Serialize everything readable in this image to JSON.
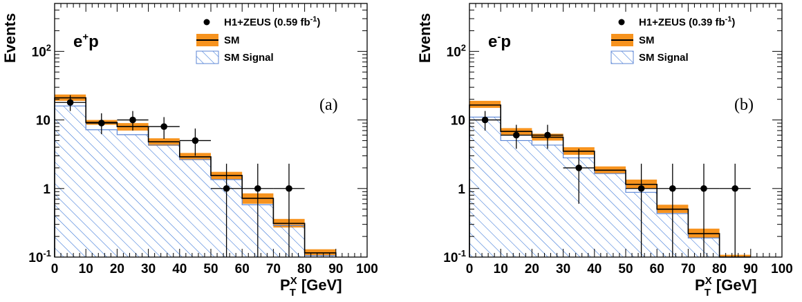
{
  "chart_data": [
    {
      "type": "histogram",
      "panel_label": "(a)",
      "beam": {
        "base": "e",
        "sup": "+",
        "rest": "p"
      },
      "ylabel": "Events",
      "xlabel": {
        "base": "P",
        "sup": "X",
        "sub": "T",
        "unit": "[GeV]"
      },
      "xlim": [
        0,
        100
      ],
      "ylim": [
        0.1,
        500
      ],
      "yscale": "log",
      "xticks": [
        "0",
        "10",
        "20",
        "30",
        "40",
        "50",
        "60",
        "70",
        "80",
        "90",
        "100"
      ],
      "yticks": [
        {
          "value": 0.1,
          "label": "10",
          "sup": "-1"
        },
        {
          "value": 1,
          "label": "1",
          "sup": ""
        },
        {
          "value": 10,
          "label": "10",
          "sup": ""
        },
        {
          "value": 100,
          "label": "10",
          "sup": "2"
        }
      ],
      "legend": [
        {
          "kind": "data",
          "label": "H1+ZEUS (0.59 fb",
          "sup": "-1",
          "tail": ")"
        },
        {
          "kind": "sm",
          "label": "SM"
        },
        {
          "kind": "signal",
          "label": "SM Signal"
        }
      ],
      "bin_edges": [
        0,
        10,
        20,
        30,
        40,
        50,
        60,
        70,
        80,
        90
      ],
      "sm": [
        21,
        9.2,
        8.0,
        4.8,
        2.9,
        1.55,
        0.72,
        0.31,
        0.115
      ],
      "sm_band": [
        [
          19,
          23.5
        ],
        [
          8.5,
          10.0
        ],
        [
          7.0,
          9.0
        ],
        [
          4.2,
          5.4
        ],
        [
          2.6,
          3.3
        ],
        [
          1.35,
          1.75
        ],
        [
          0.6,
          0.85
        ],
        [
          0.27,
          0.36
        ],
        [
          0.105,
          0.13
        ]
      ],
      "signal": [
        16,
        7.2,
        6.1,
        4.3,
        2.65,
        1.35,
        0.58,
        0.29,
        0.105
      ],
      "data": [
        {
          "x": 5,
          "y": 18,
          "ylo": 13.5,
          "yhi": 23
        },
        {
          "x": 15,
          "y": 9,
          "ylo": 6.2,
          "yhi": 12.5
        },
        {
          "x": 25,
          "y": 10,
          "ylo": 7,
          "yhi": 13.5
        },
        {
          "x": 35,
          "y": 8,
          "ylo": 5.3,
          "yhi": 11
        },
        {
          "x": 45,
          "y": 5,
          "ylo": 3,
          "yhi": 7.5
        },
        {
          "x": 55,
          "y": 1,
          "ylo": 0.1,
          "yhi": 2.3
        },
        {
          "x": 65,
          "y": 1,
          "ylo": 0.1,
          "yhi": 2.3
        },
        {
          "x": 75,
          "y": 1,
          "ylo": 0.1,
          "yhi": 2.3
        }
      ]
    },
    {
      "type": "histogram",
      "panel_label": "(b)",
      "beam": {
        "base": "e",
        "sup": "-",
        "rest": "p"
      },
      "ylabel": "Events",
      "xlabel": {
        "base": "P",
        "sup": "X",
        "sub": "T",
        "unit": "[GeV]"
      },
      "xlim": [
        0,
        100
      ],
      "ylim": [
        0.1,
        500
      ],
      "yscale": "log",
      "xticks": [
        "0",
        "10",
        "20",
        "30",
        "40",
        "50",
        "60",
        "70",
        "80",
        "90",
        "100"
      ],
      "yticks": [
        {
          "value": 0.1,
          "label": "10",
          "sup": "-1"
        },
        {
          "value": 1,
          "label": "1",
          "sup": ""
        },
        {
          "value": 10,
          "label": "10",
          "sup": ""
        },
        {
          "value": 100,
          "label": "10",
          "sup": "2"
        }
      ],
      "legend": [
        {
          "kind": "data",
          "label": "H1+ZEUS (0.39 fb",
          "sup": "-1",
          "tail": ")"
        },
        {
          "kind": "sm",
          "label": "SM"
        },
        {
          "kind": "signal",
          "label": "SM Signal"
        }
      ],
      "bin_edges": [
        0,
        10,
        20,
        30,
        40,
        50,
        60,
        70,
        80,
        90
      ],
      "sm": [
        16.5,
        6.8,
        5.6,
        3.5,
        1.85,
        1.15,
        0.5,
        0.22,
        0.1
      ],
      "sm_band": [
        [
          15,
          19
        ],
        [
          6.1,
          7.6
        ],
        [
          5.0,
          6.3
        ],
        [
          3.1,
          4.0
        ],
        [
          1.65,
          2.1
        ],
        [
          1.0,
          1.35
        ],
        [
          0.44,
          0.58
        ],
        [
          0.19,
          0.26
        ],
        [
          0.095,
          0.108
        ]
      ],
      "signal": [
        11,
        5.0,
        4.3,
        2.8,
        1.65,
        0.88,
        0.43,
        0.19,
        0.1
      ],
      "data": [
        {
          "x": 5,
          "y": 10,
          "ylo": 7,
          "yhi": 13.5
        },
        {
          "x": 15,
          "y": 6,
          "ylo": 3.8,
          "yhi": 8.5
        },
        {
          "x": 25,
          "y": 6,
          "ylo": 3.8,
          "yhi": 8.5
        },
        {
          "x": 35,
          "y": 2,
          "ylo": 0.6,
          "yhi": 3.8
        },
        {
          "x": 55,
          "y": 1,
          "ylo": 0.1,
          "yhi": 2.3
        },
        {
          "x": 65,
          "y": 1,
          "ylo": 0.1,
          "yhi": 2.3
        },
        {
          "x": 75,
          "y": 1,
          "ylo": 0.1,
          "yhi": 2.3
        },
        {
          "x": 85,
          "y": 1,
          "ylo": 0.1,
          "yhi": 2.3
        }
      ]
    }
  ],
  "colors": {
    "band": "#f7931e",
    "hatch": "#2f6fd6",
    "signal_edge": "#5b86d6",
    "axis": "#000000"
  }
}
